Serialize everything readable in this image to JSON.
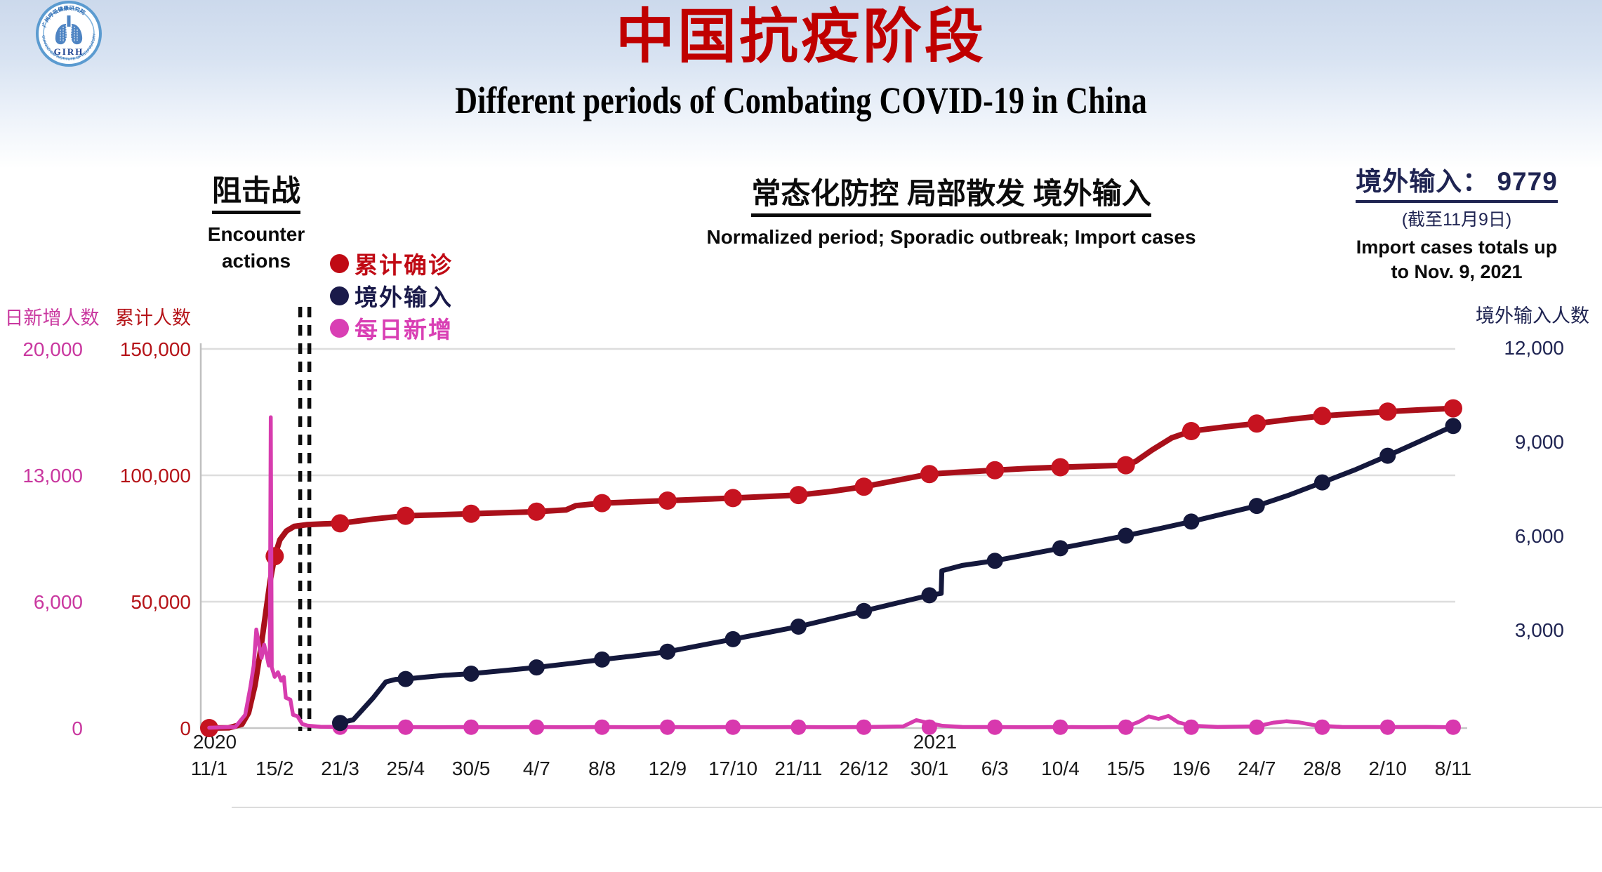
{
  "logo": {
    "abbr": "GIRH",
    "ring_text_en": "GUANGZHOU INSTITUTE OF RESPIRATORY HEALTH",
    "ring_text_zh": "广州呼吸健康研究院"
  },
  "title": {
    "zh": "中国抗疫阶段",
    "en": "Different periods of Combating COVID-19 in China"
  },
  "sections": {
    "phase1": {
      "zh": "阻击战",
      "en_line1": "Encounter",
      "en_line2": "actions"
    },
    "phase2": {
      "zh": "常态化防控 局部散发 境外输入",
      "en": "Normalized period; Sporadic outbreak; Import cases"
    },
    "import_summary": {
      "label_zh": "境外输入：",
      "value": "9779",
      "note_zh": "(截至11月9日)",
      "note_en_line1": "Import cases totals up",
      "note_en_line2": "to Nov. 9, 2021"
    }
  },
  "legend": {
    "items": [
      {
        "label": "累计确诊",
        "color": "#c00a14"
      },
      {
        "label": "境外输入",
        "color": "#1a1a4a"
      },
      {
        "label": "每日新增",
        "color": "#d93fb4"
      }
    ]
  },
  "chart_data": {
    "type": "line",
    "x_tick_labels": [
      "11/1",
      "15/2",
      "21/3",
      "25/4",
      "30/5",
      "4/7",
      "8/8",
      "12/9",
      "17/10",
      "21/11",
      "26/12",
      "30/1",
      "6/3",
      "10/4",
      "15/5",
      "19/6",
      "24/7",
      "28/8",
      "2/10",
      "8/11"
    ],
    "x_year_labels": [
      {
        "tick_index": 0,
        "label": "2020"
      },
      {
        "tick_index": 11,
        "label": "2021"
      }
    ],
    "axes": {
      "daily": {
        "title": "日新增人数",
        "color": "#c9379f",
        "max": 20000,
        "tick_labels": [
          "0",
          "6,000",
          "13,000",
          "20,000"
        ]
      },
      "cumulative": {
        "title": "累计人数",
        "color": "#b51318",
        "max": 150000,
        "tick_values": [
          0,
          50000,
          100000,
          150000
        ],
        "tick_labels": [
          "0",
          "50,000",
          "100,000",
          "150,000"
        ]
      },
      "imported": {
        "title": "境外输入人数",
        "color": "#1f2452",
        "max": 12000,
        "tick_values": [
          3000,
          6000,
          9000,
          12000
        ],
        "tick_labels": [
          "3,000",
          "6,000",
          "9,000",
          "12,000"
        ]
      }
    },
    "event_marker": {
      "type": "double-dashed-vertical",
      "tick_position": 1.39,
      "meaning": "boundary between 阻击战 and 常态化防控 periods"
    },
    "series": [
      {
        "name": "累计确诊",
        "axis": "cumulative",
        "color": "#a9101a",
        "marker_color": "#c61320",
        "points": [
          [
            0,
            0
          ],
          [
            0.3,
            100
          ],
          [
            0.5,
            1500
          ],
          [
            0.6,
            6000
          ],
          [
            0.7,
            17000
          ],
          [
            0.78,
            30000
          ],
          [
            0.86,
            45000
          ],
          [
            0.93,
            58000
          ],
          [
            1,
            68000
          ],
          [
            1.08,
            74500
          ],
          [
            1.18,
            78000
          ],
          [
            1.3,
            79800
          ],
          [
            1.5,
            80500
          ],
          [
            1.75,
            80800
          ],
          [
            2,
            81000
          ],
          [
            2.5,
            82700
          ],
          [
            3,
            84000
          ],
          [
            3.5,
            84400
          ],
          [
            4,
            84800
          ],
          [
            4.5,
            85200
          ],
          [
            5,
            85600
          ],
          [
            5.45,
            86300
          ],
          [
            5.6,
            88000
          ],
          [
            6,
            89000
          ],
          [
            6.5,
            89500
          ],
          [
            7,
            90000
          ],
          [
            7.5,
            90500
          ],
          [
            8,
            91000
          ],
          [
            8.5,
            91600
          ],
          [
            9,
            92200
          ],
          [
            9.5,
            93600
          ],
          [
            10,
            95500
          ],
          [
            10.5,
            98000
          ],
          [
            11,
            100500
          ],
          [
            11.5,
            101300
          ],
          [
            12,
            102000
          ],
          [
            12.5,
            102700
          ],
          [
            13,
            103200
          ],
          [
            13.6,
            103700
          ],
          [
            14,
            104000
          ],
          [
            14.15,
            105500
          ],
          [
            14.4,
            110000
          ],
          [
            14.7,
            114800
          ],
          [
            15,
            117500
          ],
          [
            15.5,
            119100
          ],
          [
            16,
            120500
          ],
          [
            16.5,
            122100
          ],
          [
            17,
            123500
          ],
          [
            17.5,
            124400
          ],
          [
            18,
            125200
          ],
          [
            18.5,
            125900
          ],
          [
            19,
            126500
          ]
        ],
        "markers": [
          [
            0,
            0
          ],
          [
            1,
            68000
          ],
          [
            2,
            81000
          ],
          [
            3,
            84000
          ],
          [
            4,
            84800
          ],
          [
            5,
            85600
          ],
          [
            6,
            89000
          ],
          [
            7,
            90000
          ],
          [
            8,
            91000
          ],
          [
            9,
            92200
          ],
          [
            10,
            95500
          ],
          [
            11,
            100500
          ],
          [
            12,
            102000
          ],
          [
            13,
            103200
          ],
          [
            14,
            104000
          ],
          [
            15,
            117500
          ],
          [
            16,
            120500
          ],
          [
            17,
            123500
          ],
          [
            18,
            125200
          ],
          [
            19,
            126500
          ]
        ]
      },
      {
        "name": "每日新增",
        "axis": "daily",
        "color": "#d73cae",
        "marker_color": "#d838ae",
        "points": [
          [
            0,
            20
          ],
          [
            0.4,
            60
          ],
          [
            0.55,
            700
          ],
          [
            0.63,
            2200
          ],
          [
            0.68,
            3300
          ],
          [
            0.72,
            5200
          ],
          [
            0.76,
            4400
          ],
          [
            0.8,
            3700
          ],
          [
            0.84,
            4400
          ],
          [
            0.88,
            3800
          ],
          [
            0.91,
            3300
          ],
          [
            0.925,
            3600
          ],
          [
            0.94,
            16400
          ],
          [
            0.955,
            3200
          ],
          [
            1,
            2700
          ],
          [
            1.05,
            2950
          ],
          [
            1.1,
            2500
          ],
          [
            1.14,
            2700
          ],
          [
            1.17,
            1600
          ],
          [
            1.24,
            1500
          ],
          [
            1.28,
            700
          ],
          [
            1.35,
            620
          ],
          [
            1.42,
            220
          ],
          [
            1.5,
            130
          ],
          [
            1.7,
            70
          ],
          [
            2,
            60
          ],
          [
            2.5,
            50
          ],
          [
            3,
            55
          ],
          [
            3.5,
            50
          ],
          [
            4,
            55
          ],
          [
            4.5,
            50
          ],
          [
            5,
            55
          ],
          [
            5.5,
            50
          ],
          [
            6,
            55
          ],
          [
            6.5,
            50
          ],
          [
            7,
            55
          ],
          [
            7.5,
            50
          ],
          [
            8,
            55
          ],
          [
            8.5,
            50
          ],
          [
            9,
            55
          ],
          [
            9.5,
            50
          ],
          [
            10,
            55
          ],
          [
            10.6,
            90
          ],
          [
            10.8,
            420
          ],
          [
            11,
            260
          ],
          [
            11.2,
            120
          ],
          [
            11.5,
            60
          ],
          [
            12,
            55
          ],
          [
            12.5,
            50
          ],
          [
            13,
            55
          ],
          [
            13.5,
            50
          ],
          [
            14,
            60
          ],
          [
            14.2,
            330
          ],
          [
            14.35,
            620
          ],
          [
            14.5,
            480
          ],
          [
            14.65,
            640
          ],
          [
            14.8,
            300
          ],
          [
            15,
            130
          ],
          [
            15.4,
            60
          ],
          [
            16,
            90
          ],
          [
            16.25,
            280
          ],
          [
            16.45,
            360
          ],
          [
            16.65,
            300
          ],
          [
            16.9,
            140
          ],
          [
            17.3,
            60
          ],
          [
            18,
            55
          ],
          [
            18.6,
            60
          ],
          [
            19,
            50
          ]
        ],
        "markers": [
          [
            2,
            50
          ],
          [
            3,
            50
          ],
          [
            4,
            50
          ],
          [
            5,
            50
          ],
          [
            6,
            50
          ],
          [
            7,
            50
          ],
          [
            8,
            50
          ],
          [
            9,
            50
          ],
          [
            10,
            50
          ],
          [
            11,
            50
          ],
          [
            12,
            50
          ],
          [
            13,
            50
          ],
          [
            14,
            50
          ],
          [
            15,
            50
          ],
          [
            16,
            50
          ],
          [
            17,
            50
          ],
          [
            18,
            50
          ],
          [
            19,
            50
          ]
        ]
      },
      {
        "name": "境外输入",
        "axis": "imported",
        "color": "#14183c",
        "marker_color": "#14183c",
        "points": [
          [
            2,
            30
          ],
          [
            2.2,
            130
          ],
          [
            2.5,
            820
          ],
          [
            2.7,
            1340
          ],
          [
            2.85,
            1420
          ],
          [
            3,
            1430
          ],
          [
            3.3,
            1490
          ],
          [
            3.6,
            1550
          ],
          [
            4,
            1600
          ],
          [
            4.5,
            1700
          ],
          [
            5,
            1800
          ],
          [
            5.5,
            1920
          ],
          [
            6,
            2050
          ],
          [
            6.5,
            2170
          ],
          [
            7,
            2300
          ],
          [
            7.5,
            2500
          ],
          [
            8,
            2700
          ],
          [
            8.5,
            2900
          ],
          [
            9,
            3100
          ],
          [
            9.5,
            3350
          ],
          [
            10,
            3600
          ],
          [
            10.5,
            3850
          ],
          [
            11,
            4100
          ],
          [
            11.18,
            4160
          ],
          [
            11.19,
            4880
          ],
          [
            11.5,
            5050
          ],
          [
            12,
            5200
          ],
          [
            12.5,
            5400
          ],
          [
            13,
            5600
          ],
          [
            13.5,
            5800
          ],
          [
            14,
            6000
          ],
          [
            14.5,
            6220
          ],
          [
            15,
            6450
          ],
          [
            15.5,
            6700
          ],
          [
            16,
            6950
          ],
          [
            16.5,
            7300
          ],
          [
            17,
            7700
          ],
          [
            17.5,
            8100
          ],
          [
            18,
            8550
          ],
          [
            18.5,
            9020
          ],
          [
            19,
            9500
          ]
        ],
        "markers": [
          [
            2,
            30
          ],
          [
            3,
            1430
          ],
          [
            4,
            1600
          ],
          [
            5,
            1800
          ],
          [
            6,
            2050
          ],
          [
            7,
            2300
          ],
          [
            8,
            2700
          ],
          [
            9,
            3100
          ],
          [
            10,
            3600
          ],
          [
            11,
            4100
          ],
          [
            12,
            5200
          ],
          [
            13,
            5600
          ],
          [
            14,
            6000
          ],
          [
            15,
            6450
          ],
          [
            16,
            6950
          ],
          [
            17,
            7700
          ],
          [
            18,
            8550
          ],
          [
            19,
            9500
          ]
        ]
      }
    ]
  }
}
